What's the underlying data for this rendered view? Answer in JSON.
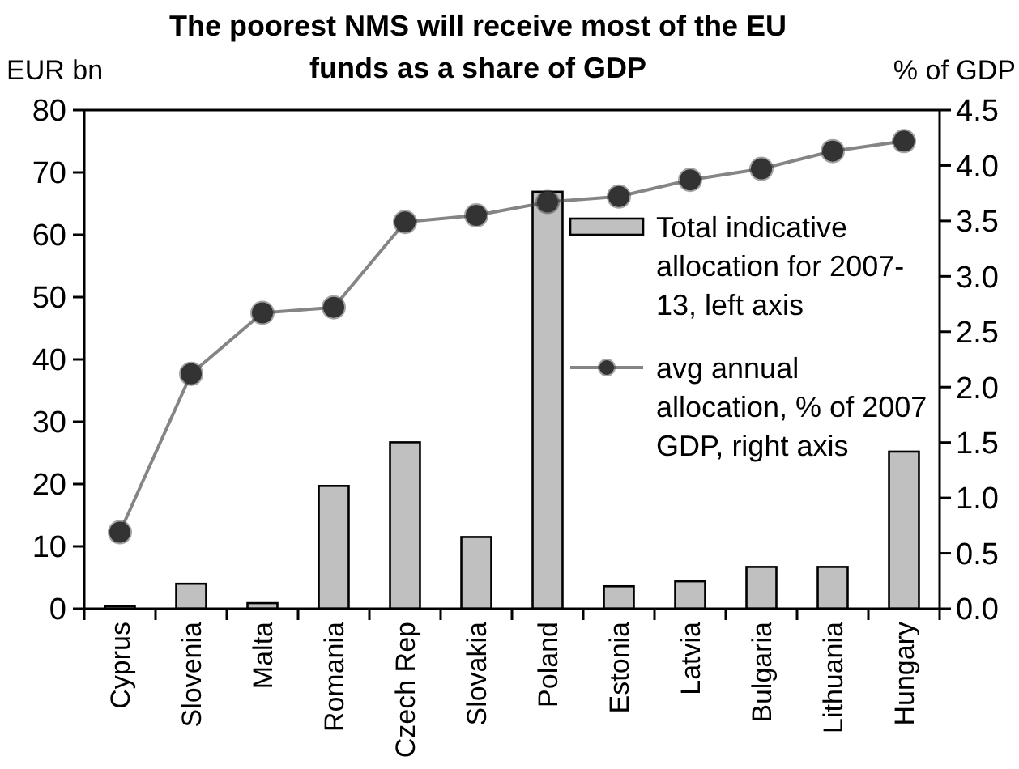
{
  "chart_data": {
    "type": "bar",
    "title": "The poorest NMS will receive most of the EU funds as a share of GDP",
    "ylabel": "EUR bn",
    "y2label": "% of GDP",
    "categories": [
      "Cyprus",
      "Slovenia",
      "Malta",
      "Romania",
      "Czech Rep",
      "Slovakia",
      "Poland",
      "Estonia",
      "Latvia",
      "Bulgaria",
      "Lithuania",
      "Hungary"
    ],
    "series": [
      {
        "name": "Total indicative allocation for 2007-13, left axis",
        "color": "#c0c0c0",
        "values": [
          0.4,
          4.0,
          0.9,
          19.7,
          26.7,
          11.5,
          66.9,
          3.6,
          4.4,
          6.7,
          6.7,
          25.2
        ]
      },
      {
        "name": "avg annual allocation, % of 2007 GDP, right axis",
        "type": "line",
        "axis": "y2",
        "color": "#333333",
        "values": [
          0.69,
          2.12,
          2.67,
          2.72,
          3.49,
          3.55,
          3.67,
          3.72,
          3.87,
          3.97,
          4.13,
          4.22
        ]
      }
    ],
    "ylim": [
      0,
      80
    ],
    "yticks": [
      0,
      10,
      20,
      30,
      40,
      50,
      60,
      70,
      80
    ],
    "y2lim": [
      0,
      4.5
    ],
    "y2ticks": [
      {
        "value": 0,
        "label": "0.0"
      },
      0.5,
      {
        "value": 1,
        "label": "1.0"
      },
      1.5,
      {
        "value": 2,
        "label": "2.0"
      },
      2.5,
      {
        "value": 3,
        "label": "3.0"
      },
      3.5,
      {
        "value": 4,
        "label": "4.0"
      },
      4.5
    ],
    "legend": "right",
    "marker": "circle"
  }
}
